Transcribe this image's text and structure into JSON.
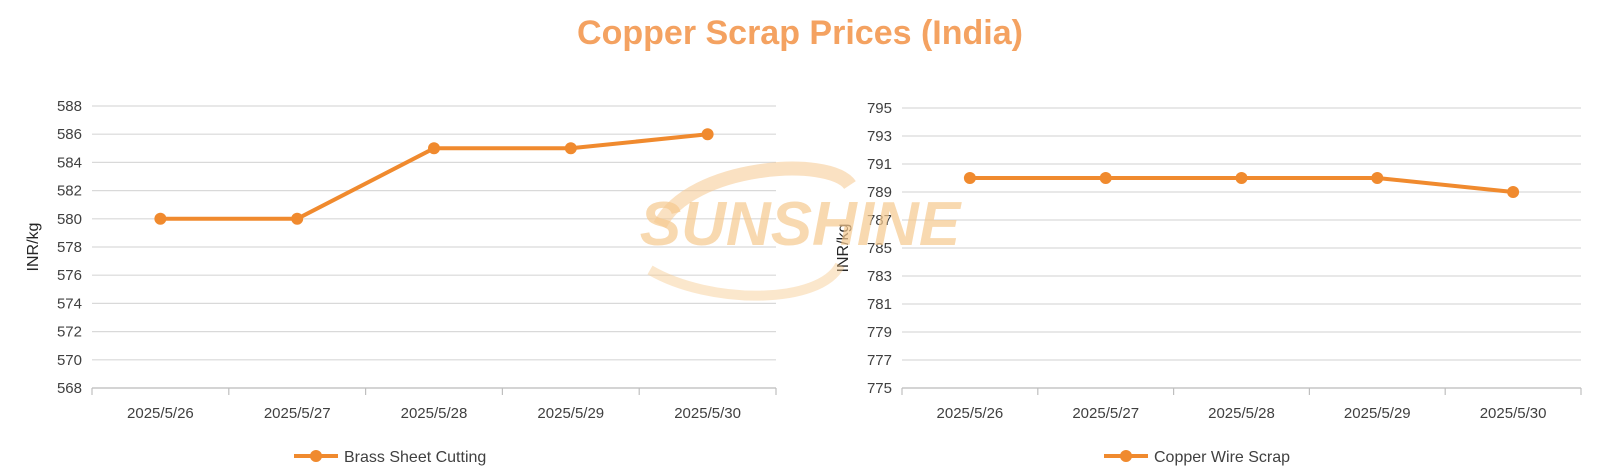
{
  "title": "Copper Scrap Prices (India)",
  "colors": {
    "series": "#F08A2E",
    "title": "#F4A261",
    "grid": "#D9D9D9",
    "watermark": "#F6C98F"
  },
  "watermark": {
    "text": "SUNSHINE"
  },
  "chart_data": [
    {
      "type": "line",
      "categories": [
        "2025/5/26",
        "2025/5/27",
        "2025/5/28",
        "2025/5/29",
        "2025/5/30"
      ],
      "series": [
        {
          "name": "Brass Sheet Cutting",
          "values": [
            580,
            580,
            585,
            585,
            586
          ]
        }
      ],
      "ylabel": "INR/kg",
      "ylim": [
        568,
        588
      ],
      "yticks": [
        568,
        570,
        572,
        574,
        576,
        578,
        580,
        582,
        584,
        586,
        588
      ],
      "grid": true,
      "legend_position": "bottom"
    },
    {
      "type": "line",
      "categories": [
        "2025/5/26",
        "2025/5/27",
        "2025/5/28",
        "2025/5/29",
        "2025/5/30"
      ],
      "series": [
        {
          "name": "Copper Wire Scrap",
          "values": [
            790,
            790,
            790,
            790,
            789
          ]
        }
      ],
      "ylabel": "INR/kg",
      "ylim": [
        775,
        795
      ],
      "yticks": [
        775,
        777,
        779,
        781,
        783,
        785,
        787,
        789,
        791,
        793,
        795
      ],
      "grid": true,
      "legend_position": "bottom"
    }
  ]
}
